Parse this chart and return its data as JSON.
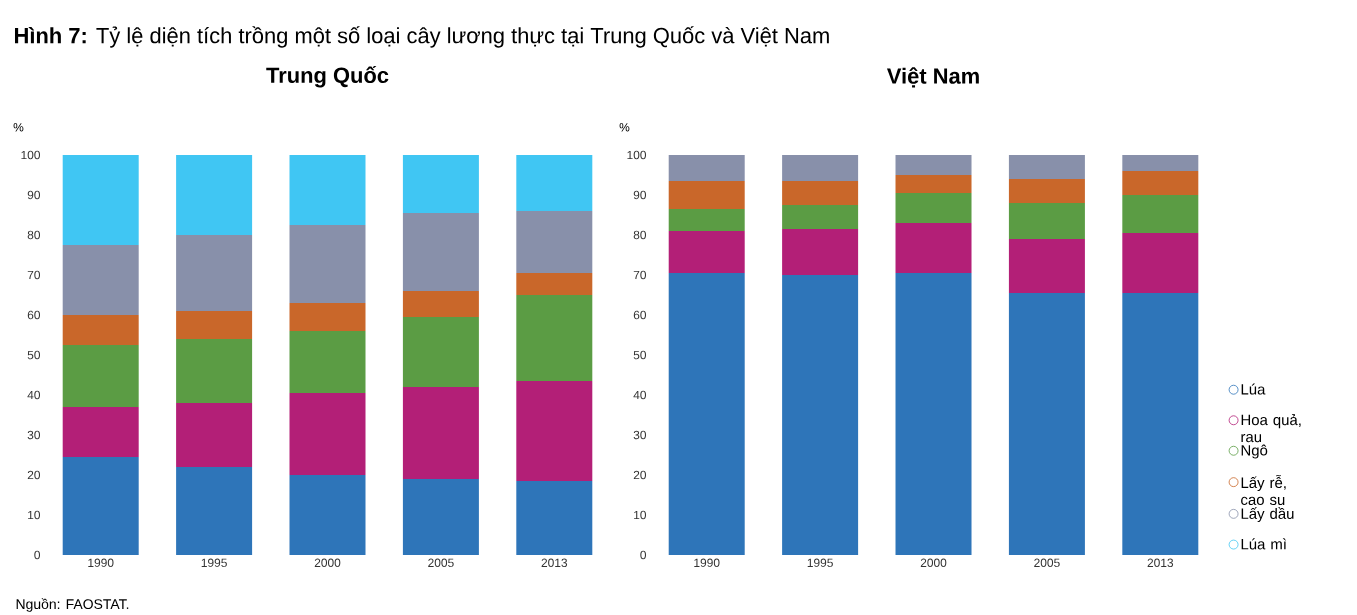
{
  "chart_data": [
    {
      "type": "bar",
      "title": "**Hình 7:** Tỷ lệ diện tích trồng một số loại cây lương thực tại Trung Quốc và Việt Nam",
      "subtitle": "Trung Quốc",
      "ylabel": "%",
      "categories": [
        "1990",
        "1995",
        "2000",
        "2005",
        "2013"
      ],
      "stacked": true,
      "ylim": [
        0,
        100
      ],
      "yticks": [
        0,
        10,
        20,
        30,
        40,
        50,
        60,
        70,
        80,
        90,
        100
      ],
      "annotations": [
        "Nguồn: FAOSTAT."
      ],
      "series": [
        {
          "color": "#2e75b9",
          "values": [
            24.5,
            22,
            20,
            19,
            18.5
          ]
        },
        {
          "color": "#b31f77",
          "values": [
            12.5,
            16,
            20.5,
            23,
            25
          ]
        },
        {
          "color": "#5b9c44",
          "values": [
            15.5,
            16,
            15.5,
            17.5,
            21.5
          ]
        },
        {
          "color": "#c9672a",
          "values": [
            7.5,
            7,
            7,
            6.5,
            5.5
          ]
        },
        {
          "color": "#8890aa",
          "values": [
            17.5,
            19,
            19.5,
            19.5,
            15.5
          ]
        },
        {
          "color": "#40c6f3",
          "values": [
            22.5,
            20,
            17.5,
            14.5,
            14
          ]
        }
      ]
    },
    {
      "type": "bar",
      "title": "Việt Nam",
      "ylabel": "%",
      "categories": [
        "1990",
        "1995",
        "2000",
        "2005",
        "2013"
      ],
      "stacked": true,
      "ylim": [
        0,
        100
      ],
      "yticks": [
        0,
        10,
        20,
        30,
        40,
        50,
        60,
        70,
        80,
        90,
        100
      ],
      "legend": "right",
      "series": [
        {
          "name": "Lúa",
          "color": "#2e75b9",
          "values": [
            70.5,
            70,
            70.5,
            65.5,
            65.5
          ]
        },
        {
          "name": "Hoa quả, rau",
          "color": "#b31f77",
          "values": [
            10.5,
            11.5,
            12.5,
            13.5,
            15
          ]
        },
        {
          "name": "Ngô",
          "color": "#5b9c44",
          "values": [
            5.5,
            6,
            7.5,
            9,
            9.5
          ]
        },
        {
          "name": "Lấy rễ, cao su",
          "color": "#c9672a",
          "values": [
            7,
            6,
            4.5,
            6,
            6
          ]
        },
        {
          "name": "Lấy dầu",
          "color": "#8890aa",
          "values": [
            6.5,
            6.5,
            5,
            6,
            4
          ]
        },
        {
          "name": "Lúa mì",
          "color": "#40c6f3",
          "values": [
            0,
            0,
            0,
            0,
            0
          ]
        }
      ]
    }
  ]
}
